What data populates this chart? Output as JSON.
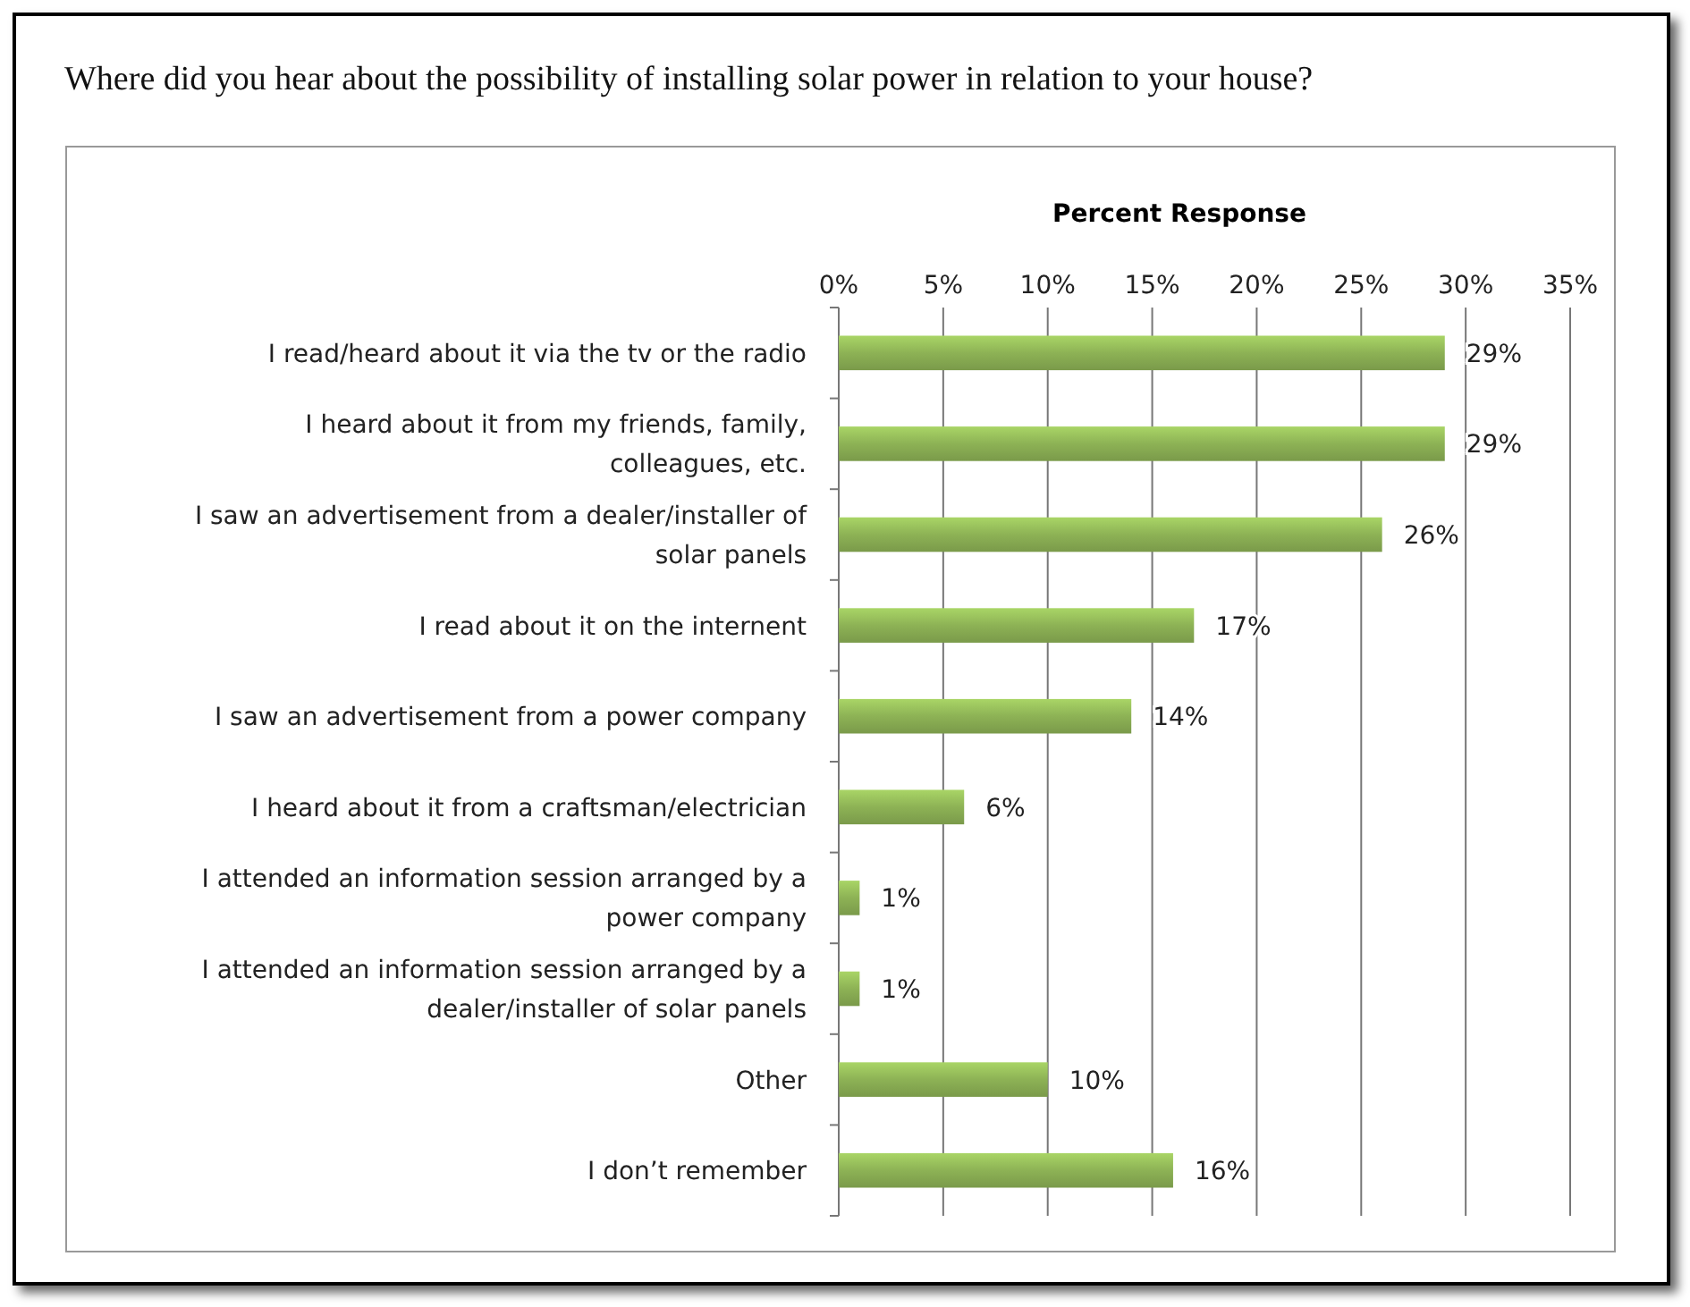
{
  "chart_data": {
    "type": "bar",
    "orientation": "horizontal",
    "title": "Where did you hear about the possibility of installing solar power in relation to your house?",
    "xlabel": "Percent Response",
    "categories": [
      "I read/heard about it via the tv or the radio",
      "I heard about it from my friends, family, colleagues, etc.",
      "I saw an advertisement from a dealer/installer of solar panels",
      "I read about it on the internent",
      "I saw an advertisement from a power company",
      "I heard about it from a craftsman/electrician",
      "I attended an information session arranged by a power company",
      "I attended an information session arranged by a dealer/installer of solar panels",
      "Other",
      "I don’t remember"
    ],
    "values": [
      29,
      29,
      26,
      17,
      14,
      6,
      1,
      1,
      10,
      16
    ],
    "value_labels": [
      "29%",
      "29%",
      "26%",
      "17%",
      "14%",
      "6%",
      "1%",
      "1%",
      "10%",
      "16%"
    ],
    "color": "#8db255",
    "xlim": [
      0,
      35
    ],
    "xticks": [
      {
        "value": 0,
        "label": "0%"
      },
      {
        "value": 5,
        "label": "5%"
      },
      {
        "value": 10,
        "label": "10%"
      },
      {
        "value": 15,
        "label": "15%"
      },
      {
        "value": 20,
        "label": "20%"
      },
      {
        "value": 25,
        "label": "25%"
      },
      {
        "value": 30,
        "label": "30%"
      },
      {
        "value": 35,
        "label": "35%"
      }
    ],
    "grid": "x"
  }
}
